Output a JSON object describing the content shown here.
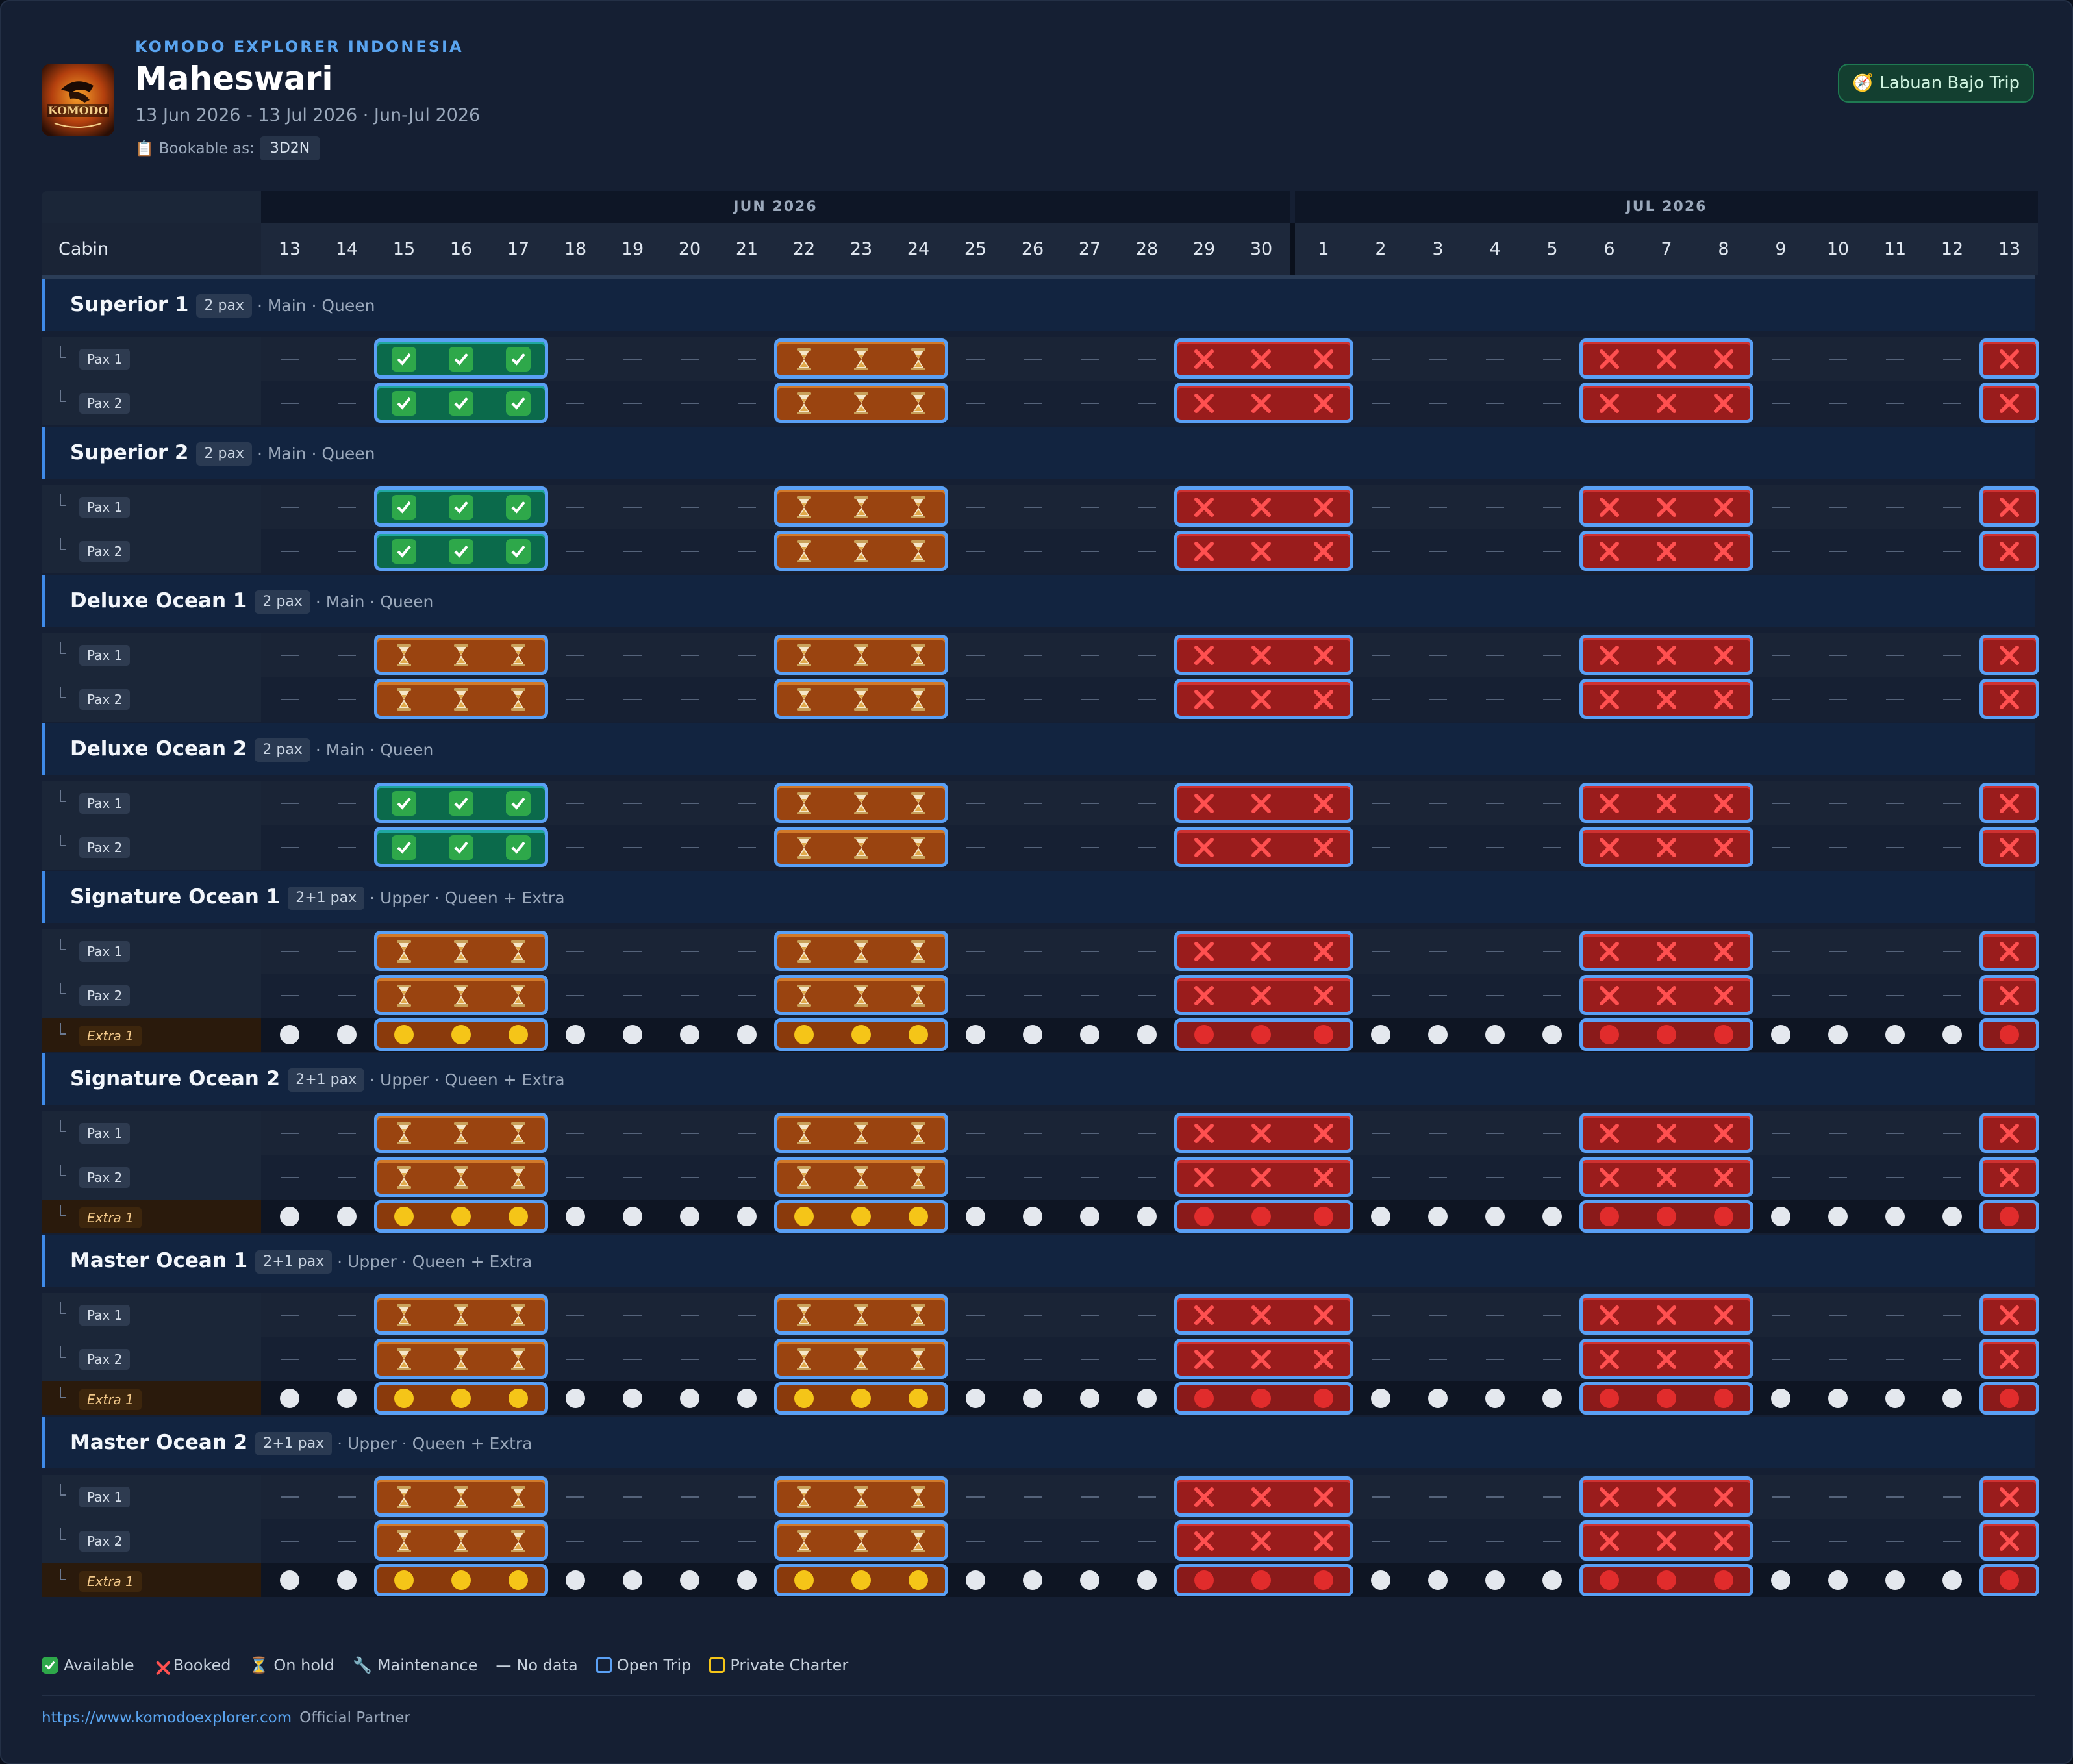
{
  "header": {
    "brand": "KOMODO EXPLORER INDONESIA",
    "title": "Maheswari",
    "dates": "13 Jun 2026 - 13 Jul 2026 · Jun-Jul 2026",
    "bookable_label": "Bookable as:",
    "bookable_value": "3D2N",
    "trip_button": "Labuan Bajo Trip",
    "logo_text": "KOMODO"
  },
  "calendar": {
    "cabin_header": "Cabin",
    "months": [
      {
        "label": "JUN 2026",
        "days": [
          "13",
          "14",
          "15",
          "16",
          "17",
          "18",
          "19",
          "20",
          "21",
          "22",
          "23",
          "24",
          "25",
          "26",
          "27",
          "28",
          "29",
          "30"
        ]
      },
      {
        "label": "JUL 2026",
        "days": [
          "1",
          "2",
          "3",
          "4",
          "5",
          "6",
          "7",
          "8",
          "9",
          "10",
          "11",
          "12",
          "13"
        ]
      }
    ],
    "status_codes": {
      "A": "Available",
      "B": "Booked",
      "H": "On hold",
      "-": "No data"
    },
    "cabins": [
      {
        "name": "Superior 1",
        "pax": "2 pax",
        "meta": "· Main · Queen",
        "rows": [
          {
            "label": "Pax 1",
            "status": "--AAA----HHH----BBB----BBB----B"
          },
          {
            "label": "Pax 2",
            "status": "--AAA----HHH----BBB----BBB----B"
          }
        ]
      },
      {
        "name": "Superior 2",
        "pax": "2 pax",
        "meta": "· Main · Queen",
        "rows": [
          {
            "label": "Pax 1",
            "status": "--AAA----HHH----BBB----BBB----B"
          },
          {
            "label": "Pax 2",
            "status": "--AAA----HHH----BBB----BBB----B"
          }
        ]
      },
      {
        "name": "Deluxe Ocean 1",
        "pax": "2 pax",
        "meta": "· Main · Queen",
        "rows": [
          {
            "label": "Pax 1",
            "status": "--HHH----HHH----BBB----BBB----B"
          },
          {
            "label": "Pax 2",
            "status": "--HHH----HHH----BBB----BBB----B"
          }
        ]
      },
      {
        "name": "Deluxe Ocean 2",
        "pax": "2 pax",
        "meta": "· Main · Queen",
        "rows": [
          {
            "label": "Pax 1",
            "status": "--AAA----HHH----BBB----BBB----B"
          },
          {
            "label": "Pax 2",
            "status": "--AAA----HHH----BBB----BBB----B"
          }
        ]
      },
      {
        "name": "Signature Ocean 1",
        "pax": "2+1 pax",
        "meta": "· Upper · Queen + Extra",
        "rows": [
          {
            "label": "Pax 1",
            "status": "--HHH----HHH----BBB----BBB----B"
          },
          {
            "label": "Pax 2",
            "status": "--HHH----HHH----BBB----BBB----B"
          }
        ],
        "extra": {
          "label": "Extra 1",
          "status": "wwyyywwwwyyywwwwrrrwwwwrrrwwwwr"
        }
      },
      {
        "name": "Signature Ocean 2",
        "pax": "2+1 pax",
        "meta": "· Upper · Queen + Extra",
        "rows": [
          {
            "label": "Pax 1",
            "status": "--HHH----HHH----BBB----BBB----B"
          },
          {
            "label": "Pax 2",
            "status": "--HHH----HHH----BBB----BBB----B"
          }
        ],
        "extra": {
          "label": "Extra 1",
          "status": "wwyyywwwwyyywwwwrrrwwwwrrrwwwwr"
        }
      },
      {
        "name": "Master Ocean 1",
        "pax": "2+1 pax",
        "meta": "· Upper · Queen + Extra",
        "rows": [
          {
            "label": "Pax 1",
            "status": "--HHH----HHH----BBB----BBB----B"
          },
          {
            "label": "Pax 2",
            "status": "--HHH----HHH----BBB----BBB----B"
          }
        ],
        "extra": {
          "label": "Extra 1",
          "status": "wwyyywwwwyyywwwwrrrwwwwrrrwwwwr"
        }
      },
      {
        "name": "Master Ocean 2",
        "pax": "2+1 pax",
        "meta": "· Upper · Queen + Extra",
        "rows": [
          {
            "label": "Pax 1",
            "status": "--HHH----HHH----BBB----BBB----B"
          },
          {
            "label": "Pax 2",
            "status": "--HHH----HHH----BBB----BBB----B"
          }
        ],
        "extra": {
          "label": "Extra 1",
          "status": "wwyyywwwwyyywwwwrrrwwwwrrrwwwwr"
        }
      }
    ]
  },
  "legend": {
    "available": "Available",
    "booked": "Booked",
    "on_hold": "On hold",
    "maintenance": "Maintenance",
    "no_data": "No data",
    "open_trip": "Open Trip",
    "private_charter": "Private Charter"
  },
  "footer": {
    "url": "https://www.komodoexplorer.com",
    "partner": "Official Partner"
  },
  "colors": {
    "accent": "#59a4f0",
    "available": "#0b6a4b",
    "on_hold": "#9a4410",
    "booked": "#9a1c1c",
    "open_trip_border": "#5aa0f5",
    "private_charter_border": "#f5c518"
  }
}
